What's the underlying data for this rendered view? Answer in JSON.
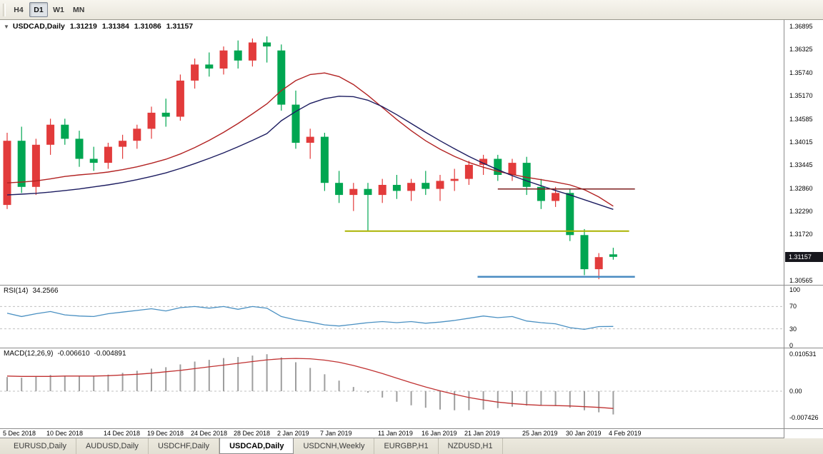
{
  "toolbar": {
    "timeframes": [
      {
        "label": "H4",
        "active": false
      },
      {
        "label": "D1",
        "active": true
      },
      {
        "label": "W1",
        "active": false
      },
      {
        "label": "MN",
        "active": false
      }
    ]
  },
  "chart_header": {
    "expander": "▼",
    "title": "USDCAD,Daily",
    "open": "1.31219",
    "high": "1.31384",
    "low": "1.31086",
    "close": "1.31157"
  },
  "chart_data": {
    "type": "candlestick",
    "symbol": "USDCAD",
    "timeframe": "Daily",
    "up_color": "#e23b3b",
    "down_color": "#00a651",
    "candles": [
      [
        "2018-12-05",
        1.3245,
        1.3425,
        1.3235,
        1.3405
      ],
      [
        "2018-12-06",
        1.3405,
        1.344,
        1.3275,
        1.329
      ],
      [
        "2018-12-07",
        1.329,
        1.341,
        1.327,
        1.3395
      ],
      [
        "2018-12-10",
        1.3395,
        1.346,
        1.337,
        1.3445
      ],
      [
        "2018-12-11",
        1.3445,
        1.346,
        1.3395,
        1.341
      ],
      [
        "2018-12-12",
        1.341,
        1.343,
        1.334,
        1.336
      ],
      [
        "2018-12-13",
        1.336,
        1.339,
        1.333,
        1.335
      ],
      [
        "2018-12-14",
        1.335,
        1.34,
        1.3335,
        1.339
      ],
      [
        "2018-12-17",
        1.339,
        1.342,
        1.336,
        1.3405
      ],
      [
        "2018-12-18",
        1.3405,
        1.3445,
        1.3385,
        1.3435
      ],
      [
        "2018-12-19",
        1.3435,
        1.349,
        1.341,
        1.3475
      ],
      [
        "2018-12-20",
        1.3475,
        1.351,
        1.344,
        1.3465
      ],
      [
        "2018-12-21",
        1.3465,
        1.357,
        1.3455,
        1.3555
      ],
      [
        "2018-12-24",
        1.3555,
        1.361,
        1.3535,
        1.3595
      ],
      [
        "2018-12-25",
        1.3595,
        1.3625,
        1.3565,
        1.3585
      ],
      [
        "2018-12-26",
        1.3585,
        1.364,
        1.357,
        1.363
      ],
      [
        "2018-12-27",
        1.363,
        1.3655,
        1.3585,
        1.3605
      ],
      [
        "2018-12-28",
        1.3605,
        1.366,
        1.359,
        1.365
      ],
      [
        "2018-12-31",
        1.365,
        1.3665,
        1.36,
        1.364
      ],
      [
        "2019-01-02",
        1.363,
        1.3645,
        1.348,
        1.3495
      ],
      [
        "2019-01-03",
        1.3495,
        1.353,
        1.3385,
        1.34
      ],
      [
        "2019-01-04",
        1.34,
        1.3435,
        1.336,
        1.3415
      ],
      [
        "2019-01-07",
        1.3415,
        1.3425,
        1.328,
        1.33
      ],
      [
        "2019-01-08",
        1.33,
        1.333,
        1.325,
        1.327
      ],
      [
        "2019-01-09",
        1.327,
        1.33,
        1.323,
        1.3285
      ],
      [
        "2019-01-10",
        1.3285,
        1.33,
        1.318,
        1.327
      ],
      [
        "2019-01-11",
        1.327,
        1.331,
        1.325,
        1.3295
      ],
      [
        "2019-01-14",
        1.3295,
        1.332,
        1.326,
        1.328
      ],
      [
        "2019-01-15",
        1.328,
        1.331,
        1.3255,
        1.33
      ],
      [
        "2019-01-16",
        1.33,
        1.333,
        1.327,
        1.3285
      ],
      [
        "2019-01-17",
        1.3285,
        1.332,
        1.3255,
        1.3305
      ],
      [
        "2019-01-18",
        1.3305,
        1.3335,
        1.328,
        1.331
      ],
      [
        "2019-01-21",
        1.331,
        1.3355,
        1.3295,
        1.3345
      ],
      [
        "2019-01-22",
        1.3345,
        1.337,
        1.332,
        1.336
      ],
      [
        "2019-01-23",
        1.336,
        1.337,
        1.3305,
        1.332
      ],
      [
        "2019-01-24",
        1.332,
        1.336,
        1.3305,
        1.335
      ],
      [
        "2019-01-25",
        1.335,
        1.3365,
        1.327,
        1.329
      ],
      [
        "2019-01-28",
        1.329,
        1.331,
        1.3235,
        1.3255
      ],
      [
        "2019-01-29",
        1.3255,
        1.329,
        1.324,
        1.3275
      ],
      [
        "2019-01-30",
        1.3275,
        1.3285,
        1.3155,
        1.317
      ],
      [
        "2019-01-31",
        1.317,
        1.3185,
        1.307,
        1.3085
      ],
      [
        "2019-02-01",
        1.3085,
        1.3125,
        1.306,
        1.3115
      ],
      [
        "2019-02-04",
        1.31219,
        1.31384,
        1.31086,
        1.31157
      ]
    ],
    "ma_fast": {
      "color": "#b22222",
      "values": [
        1.33,
        1.3302,
        1.3305,
        1.331,
        1.3316,
        1.332,
        1.3323,
        1.3327,
        1.3333,
        1.334,
        1.3349,
        1.3359,
        1.3372,
        1.3388,
        1.3406,
        1.3426,
        1.3448,
        1.3472,
        1.3497,
        1.353,
        1.3555,
        1.357,
        1.3574,
        1.3565,
        1.3545,
        1.3518,
        1.3488,
        1.3458,
        1.343,
        1.3405,
        1.3384,
        1.3366,
        1.3351,
        1.3339,
        1.3329,
        1.3321,
        1.3314,
        1.3308,
        1.3302,
        1.3295,
        1.3283,
        1.3265,
        1.3242
      ]
    },
    "ma_slow": {
      "color": "#1c1c60",
      "values": [
        1.327,
        1.3272,
        1.3274,
        1.3277,
        1.3281,
        1.3285,
        1.329,
        1.3295,
        1.3301,
        1.3308,
        1.3316,
        1.3325,
        1.3336,
        1.3348,
        1.3361,
        1.3375,
        1.339,
        1.3406,
        1.3423,
        1.3455,
        1.3478,
        1.3498,
        1.351,
        1.3516,
        1.3515,
        1.3506,
        1.349,
        1.347,
        1.3448,
        1.3426,
        1.3405,
        1.3385,
        1.3366,
        1.3349,
        1.3333,
        1.3318,
        1.3305,
        1.3293,
        1.3281,
        1.327,
        1.3258,
        1.3246,
        1.3234
      ]
    },
    "hlines": [
      {
        "name": "resistance-trendline",
        "price": 1.3285,
        "color": "#7d1f1f",
        "width": 1.5,
        "from": 34.0,
        "to": 43.5
      },
      {
        "name": "support-trendline-yellow",
        "price": 1.318,
        "color": "#aab400",
        "width": 2,
        "from": 23.4,
        "to": 43.1
      },
      {
        "name": "support-trendline-blue",
        "price": 1.3066,
        "color": "#4a8bc2",
        "width": 2.5,
        "from": 32.6,
        "to": 43.5
      }
    ],
    "price_axis": {
      "min": 1.3046,
      "max": 1.3706,
      "labels": [
        "1.36895",
        "1.36325",
        "1.35740",
        "1.35170",
        "1.34585",
        "1.34015",
        "1.33445",
        "1.32860",
        "1.32290",
        "1.31720",
        "1.30565"
      ],
      "current": "1.31157"
    },
    "x_labels": [
      {
        "i": 0,
        "t": "5 Dec 2018"
      },
      {
        "i": 3,
        "t": "10 Dec 2018"
      },
      {
        "i": 7,
        "t": "14 Dec 2018"
      },
      {
        "i": 10,
        "t": "19 Dec 2018"
      },
      {
        "i": 13,
        "t": "24 Dec 2018"
      },
      {
        "i": 16,
        "t": "28 Dec 2018"
      },
      {
        "i": 19,
        "t": "2 Jan 2019"
      },
      {
        "i": 22,
        "t": "7 Jan 2019"
      },
      {
        "i": 26,
        "t": "11 Jan 2019"
      },
      {
        "i": 29,
        "t": "16 Jan 2019"
      },
      {
        "i": 32,
        "t": "21 Jan 2019"
      },
      {
        "i": 36,
        "t": "25 Jan 2019"
      },
      {
        "i": 39,
        "t": "30 Jan 2019"
      },
      {
        "i": 42,
        "t": "4 Feb 2019"
      }
    ],
    "rsi": {
      "label": "RSI(14)",
      "value": "34.2566",
      "color": "#4a90c2",
      "scale_labels": [
        "100",
        "70",
        "30",
        "0"
      ],
      "dashed_levels": [
        70,
        30
      ],
      "axis": {
        "min": 0,
        "max": 100
      },
      "values": [
        58,
        52,
        57,
        61,
        55,
        53,
        52,
        57,
        60,
        63,
        66,
        62,
        68,
        70,
        67,
        70,
        65,
        70,
        67,
        52,
        46,
        42,
        37,
        35,
        38,
        41,
        43,
        41,
        43,
        40,
        42,
        45,
        49,
        53,
        50,
        52,
        44,
        41,
        39,
        32,
        29,
        34,
        34.26
      ]
    },
    "macd": {
      "label": "MACD(12,26,9)",
      "value": "-0.006610",
      "signal_value": "-0.004891",
      "hist_color": "#9e9e9e",
      "signal_color": "#c03232",
      "scale_labels": [
        "0.010531",
        "0.00",
        "-0.007426"
      ],
      "axis_max": 0.010531,
      "axis_min": -0.007426,
      "hist": [
        0.004,
        0.0038,
        0.0042,
        0.0046,
        0.0044,
        0.0042,
        0.0043,
        0.0047,
        0.0052,
        0.0058,
        0.0064,
        0.0068,
        0.0076,
        0.0084,
        0.0089,
        0.0094,
        0.0097,
        0.0101,
        0.0105,
        0.0096,
        0.0082,
        0.0066,
        0.0048,
        0.003,
        0.0012,
        -0.0004,
        -0.0018,
        -0.003,
        -0.004,
        -0.0047,
        -0.0052,
        -0.0054,
        -0.0054,
        -0.0052,
        -0.0048,
        -0.0044,
        -0.0041,
        -0.004,
        -0.0042,
        -0.0047,
        -0.0054,
        -0.006,
        -0.0066
      ],
      "signal": [
        0.0043,
        0.0042,
        0.0042,
        0.0042,
        0.0043,
        0.0043,
        0.0043,
        0.0044,
        0.0046,
        0.0048,
        0.0051,
        0.0055,
        0.0059,
        0.0064,
        0.0069,
        0.0074,
        0.0079,
        0.0084,
        0.0089,
        0.0092,
        0.0093,
        0.0092,
        0.0088,
        0.0082,
        0.0073,
        0.0062,
        0.005,
        0.0037,
        0.0024,
        0.0012,
        0.0001,
        -0.0009,
        -0.0018,
        -0.0025,
        -0.0031,
        -0.0035,
        -0.0038,
        -0.004,
        -0.0041,
        -0.0042,
        -0.0044,
        -0.0046,
        -0.0049
      ]
    }
  },
  "bottom_tabs": [
    {
      "label": "EURUSD,Daily",
      "active": false
    },
    {
      "label": "AUDUSD,Daily",
      "active": false
    },
    {
      "label": "USDCHF,Daily",
      "active": false
    },
    {
      "label": "USDCAD,Daily",
      "active": true
    },
    {
      "label": "USDCNH,Weekly",
      "active": false
    },
    {
      "label": "EURGBP,H1",
      "active": false
    },
    {
      "label": "NZDUSD,H1",
      "active": false
    }
  ]
}
